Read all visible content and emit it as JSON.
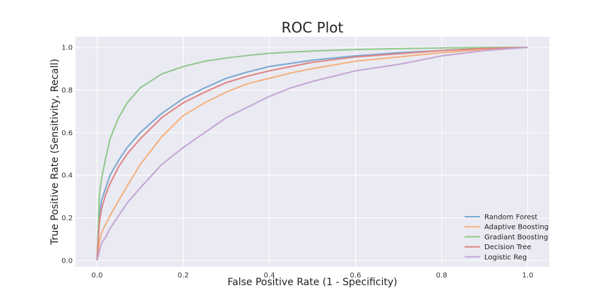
{
  "chart_data": {
    "type": "line",
    "title": "ROC Plot",
    "xlabel": "False Positive Rate (1 - Specificity)",
    "ylabel": "True Positive Rate (Sensitivity, Recall)",
    "xlim": [
      -0.05,
      1.05
    ],
    "ylim": [
      -0.03,
      1.05
    ],
    "xticks": [
      "0.0",
      "0.2",
      "0.4",
      "0.6",
      "0.8",
      "1.0"
    ],
    "yticks": [
      "0.0",
      "0.2",
      "0.4",
      "0.6",
      "0.8",
      "1.0"
    ],
    "grid": true,
    "legend_position": "bottom-right",
    "series": [
      {
        "name": "Random Forest",
        "color": "#7aa8cf",
        "points": [
          [
            0,
            0
          ],
          [
            0.005,
            0.2
          ],
          [
            0.01,
            0.28
          ],
          [
            0.02,
            0.34
          ],
          [
            0.03,
            0.4
          ],
          [
            0.05,
            0.47
          ],
          [
            0.07,
            0.53
          ],
          [
            0.1,
            0.6
          ],
          [
            0.15,
            0.69
          ],
          [
            0.2,
            0.76
          ],
          [
            0.25,
            0.81
          ],
          [
            0.3,
            0.855
          ],
          [
            0.35,
            0.885
          ],
          [
            0.4,
            0.91
          ],
          [
            0.45,
            0.925
          ],
          [
            0.5,
            0.94
          ],
          [
            0.6,
            0.96
          ],
          [
            0.7,
            0.975
          ],
          [
            0.8,
            0.985
          ],
          [
            0.9,
            0.995
          ],
          [
            1.0,
            1.0
          ]
        ]
      },
      {
        "name": "Adaptive Boosting",
        "color": "#f5b07c",
        "points": [
          [
            0,
            0
          ],
          [
            0.005,
            0.08
          ],
          [
            0.01,
            0.13
          ],
          [
            0.02,
            0.17
          ],
          [
            0.03,
            0.21
          ],
          [
            0.05,
            0.28
          ],
          [
            0.07,
            0.35
          ],
          [
            0.1,
            0.45
          ],
          [
            0.15,
            0.58
          ],
          [
            0.2,
            0.68
          ],
          [
            0.25,
            0.74
          ],
          [
            0.3,
            0.79
          ],
          [
            0.35,
            0.83
          ],
          [
            0.4,
            0.855
          ],
          [
            0.45,
            0.88
          ],
          [
            0.5,
            0.9
          ],
          [
            0.6,
            0.935
          ],
          [
            0.7,
            0.955
          ],
          [
            0.8,
            0.975
          ],
          [
            0.9,
            0.99
          ],
          [
            1.0,
            1.0
          ]
        ]
      },
      {
        "name": "Gradiant Boosting",
        "color": "#8fc98b",
        "points": [
          [
            0,
            0
          ],
          [
            0.005,
            0.3
          ],
          [
            0.01,
            0.38
          ],
          [
            0.02,
            0.48
          ],
          [
            0.03,
            0.57
          ],
          [
            0.05,
            0.67
          ],
          [
            0.07,
            0.74
          ],
          [
            0.1,
            0.81
          ],
          [
            0.15,
            0.875
          ],
          [
            0.2,
            0.91
          ],
          [
            0.25,
            0.935
          ],
          [
            0.3,
            0.95
          ],
          [
            0.35,
            0.962
          ],
          [
            0.4,
            0.972
          ],
          [
            0.45,
            0.978
          ],
          [
            0.5,
            0.983
          ],
          [
            0.6,
            0.99
          ],
          [
            0.7,
            0.994
          ],
          [
            0.8,
            0.997
          ],
          [
            0.9,
            0.999
          ],
          [
            1.0,
            1.0
          ]
        ]
      },
      {
        "name": "Decision Tree",
        "color": "#df8383",
        "points": [
          [
            0,
            0
          ],
          [
            0.005,
            0.17
          ],
          [
            0.01,
            0.24
          ],
          [
            0.02,
            0.31
          ],
          [
            0.03,
            0.36
          ],
          [
            0.05,
            0.44
          ],
          [
            0.07,
            0.5
          ],
          [
            0.1,
            0.57
          ],
          [
            0.15,
            0.67
          ],
          [
            0.2,
            0.74
          ],
          [
            0.25,
            0.79
          ],
          [
            0.3,
            0.835
          ],
          [
            0.35,
            0.865
          ],
          [
            0.4,
            0.89
          ],
          [
            0.45,
            0.91
          ],
          [
            0.5,
            0.93
          ],
          [
            0.6,
            0.955
          ],
          [
            0.7,
            0.97
          ],
          [
            0.8,
            0.985
          ],
          [
            0.9,
            0.995
          ],
          [
            1.0,
            1.0
          ]
        ]
      },
      {
        "name": "Logistic Reg",
        "color": "#c2a6d6",
        "points": [
          [
            0,
            0
          ],
          [
            0.005,
            0.04
          ],
          [
            0.01,
            0.08
          ],
          [
            0.02,
            0.11
          ],
          [
            0.03,
            0.15
          ],
          [
            0.05,
            0.21
          ],
          [
            0.07,
            0.27
          ],
          [
            0.1,
            0.34
          ],
          [
            0.15,
            0.45
          ],
          [
            0.2,
            0.53
          ],
          [
            0.25,
            0.6
          ],
          [
            0.3,
            0.67
          ],
          [
            0.35,
            0.72
          ],
          [
            0.4,
            0.77
          ],
          [
            0.45,
            0.81
          ],
          [
            0.5,
            0.84
          ],
          [
            0.6,
            0.89
          ],
          [
            0.7,
            0.92
          ],
          [
            0.8,
            0.96
          ],
          [
            0.9,
            0.985
          ],
          [
            1.0,
            1.0
          ]
        ]
      }
    ]
  }
}
